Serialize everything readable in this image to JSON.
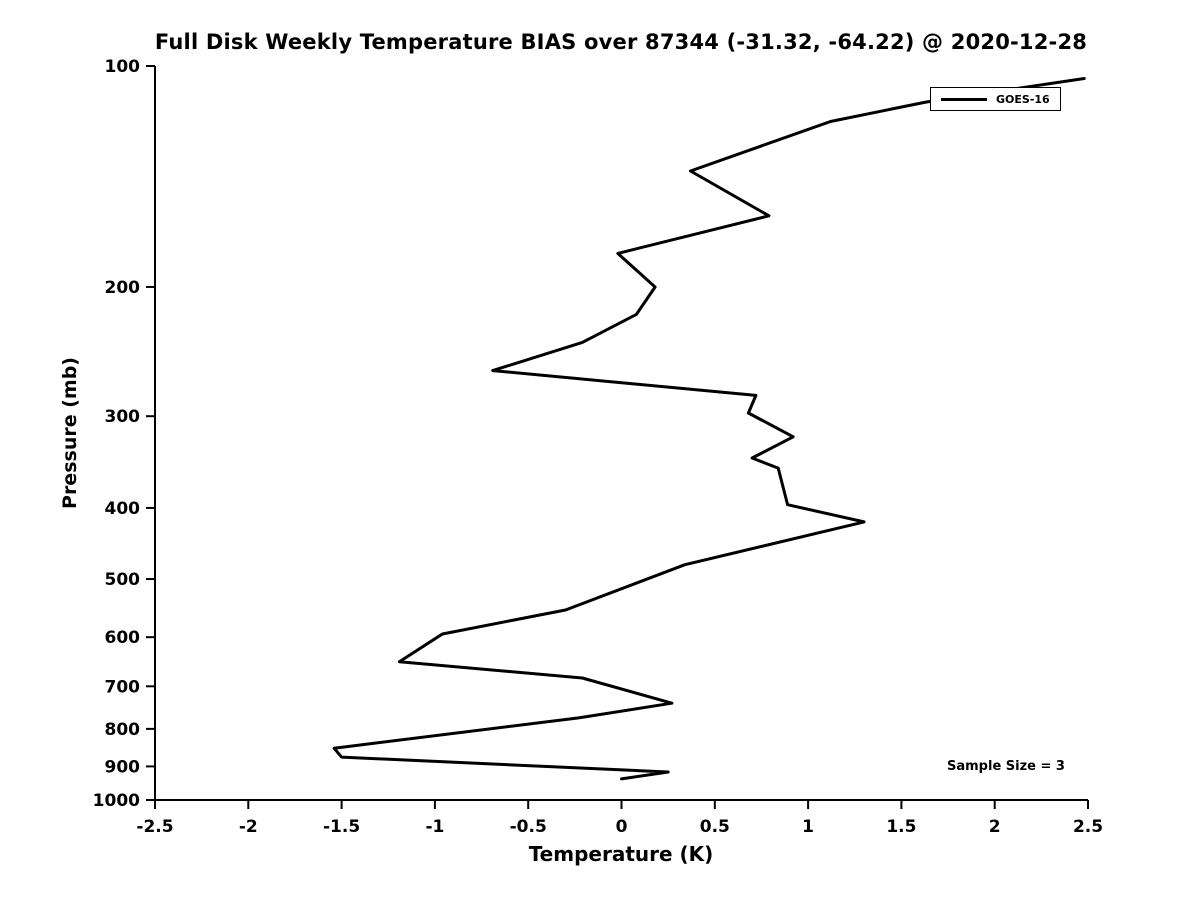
{
  "page": {
    "background": "#ffffff",
    "foreground": "#000000"
  },
  "chart_data": {
    "type": "line",
    "title": "Full Disk Weekly Temperature BIAS over 87344 (-31.32, -64.22) @ 2020-12-28",
    "xlabel": "Temperature (K)",
    "ylabel": "Pressure (mb)",
    "xlim": [
      -2.5,
      2.5
    ],
    "ylim": [
      1000,
      100
    ],
    "y_scale": "log",
    "y_axis_inverted": true,
    "grid": false,
    "line_color": "#000000",
    "line_width": 3,
    "x_tick_values": [
      -2.5,
      -2,
      -1.5,
      -1,
      -0.5,
      0,
      0.5,
      1,
      1.5,
      2,
      2.5
    ],
    "x_tick_labels": [
      "-2.5",
      "-2",
      "-1.5",
      "-1",
      "-0.5",
      "0",
      "0.5",
      "1",
      "1.5",
      "2",
      "2.5"
    ],
    "y_tick_values": [
      100,
      200,
      300,
      400,
      500,
      600,
      700,
      800,
      900,
      1000
    ],
    "y_tick_labels": [
      "100",
      "200",
      "300",
      "400",
      "500",
      "600",
      "700",
      "800",
      "900",
      "1000"
    ],
    "legend": {
      "position": "upper-right",
      "label": "GOES-16"
    },
    "annotation": {
      "text": "Sample Size = 3",
      "position": "lower-right"
    },
    "point_format": [
      "pressure_mb",
      "bias_k"
    ],
    "series": [
      {
        "name": "GOES-16",
        "color": "#000000",
        "points": [
          [
            104,
            2.48
          ],
          [
            112,
            1.63
          ],
          [
            119,
            1.12
          ],
          [
            139,
            0.37
          ],
          [
            160,
            0.79
          ],
          [
            180,
            -0.02
          ],
          [
            200,
            0.18
          ],
          [
            218,
            0.08
          ],
          [
            238,
            -0.21
          ],
          [
            260,
            -0.69
          ],
          [
            281,
            0.72
          ],
          [
            297,
            0.68
          ],
          [
            320,
            0.92
          ],
          [
            342,
            0.7
          ],
          [
            353,
            0.84
          ],
          [
            396,
            0.89
          ],
          [
            418,
            1.3
          ],
          [
            478,
            0.34
          ],
          [
            551,
            -0.3
          ],
          [
            594,
            -0.96
          ],
          [
            603,
            -1.0
          ],
          [
            648,
            -1.19
          ],
          [
            682,
            -0.21
          ],
          [
            738,
            0.27
          ],
          [
            773,
            -0.23
          ],
          [
            850,
            -1.54
          ],
          [
            874,
            -1.5
          ],
          [
            916,
            0.25
          ],
          [
            936,
            0.0
          ]
        ]
      }
    ]
  }
}
